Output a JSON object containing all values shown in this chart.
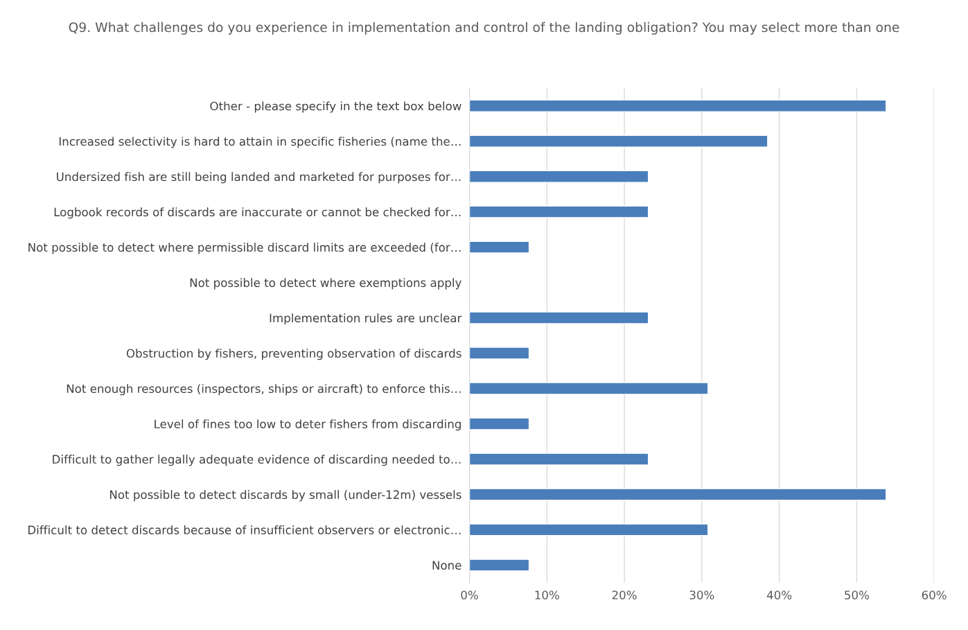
{
  "chart_data": {
    "type": "bar",
    "orientation": "horizontal",
    "title": "Q9. What challenges do you experience in implementation and control of the landing obligation? You may select more than one",
    "categories": [
      "Other - please specify in the text box below",
      "Increased selectivity is hard to attain in specific fisheries (name the…",
      "Undersized fish are still being landed and marketed for purposes for…",
      "Logbook records of discards are inaccurate or cannot be checked for…",
      "Not possible to detect where permissible discard limits are exceeded (for…",
      "Not possible to detect where exemptions apply",
      "Implementation rules are unclear",
      "Obstruction by fishers, preventing observation of discards",
      "Not enough resources (inspectors, ships or aircraft) to enforce this…",
      "Level of fines too low to deter fishers from discarding",
      "Difficult to gather legally adequate evidence of discarding needed to…",
      "Not possible to detect discards by small (under-12m) vessels",
      "Difficult to detect discards because of insufficient observers or electronic…",
      "None"
    ],
    "values": [
      53.8,
      38.5,
      23.1,
      23.1,
      7.7,
      0,
      23.1,
      7.7,
      30.8,
      7.7,
      23.1,
      53.8,
      30.8,
      7.7
    ],
    "color": "#4a7ebb",
    "xlim": [
      0,
      60
    ],
    "xticks": [
      {
        "value": 0,
        "label": "0%"
      },
      {
        "value": 10,
        "label": "10%"
      },
      {
        "value": 20,
        "label": "20%"
      },
      {
        "value": 30,
        "label": "30%"
      },
      {
        "value": 40,
        "label": "40%"
      },
      {
        "value": 50,
        "label": "50%"
      },
      {
        "value": 60,
        "label": "60%"
      }
    ],
    "grid": "x",
    "legend": false
  }
}
